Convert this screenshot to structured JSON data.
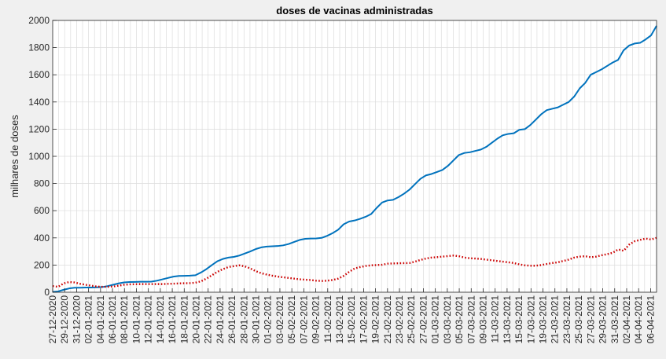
{
  "chart_data": {
    "type": "line",
    "title": "doses de vacinas administradas",
    "xlabel": "",
    "ylabel": "milhares de doses",
    "ylim": [
      0,
      2000
    ],
    "yticks": [
      0,
      200,
      400,
      600,
      800,
      1000,
      1200,
      1400,
      1600,
      1800,
      2000
    ],
    "grid": true,
    "legend": "none",
    "x_start": "2020-12-27",
    "x_end": "2021-04-07",
    "x_tick_labels": [
      "27-12-2020",
      "29-12-2020",
      "31-12-2020",
      "02-01-2021",
      "04-01-2021",
      "06-01-2021",
      "08-01-2021",
      "10-01-2021",
      "12-01-2021",
      "14-01-2021",
      "16-01-2021",
      "18-01-2021",
      "20-01-2021",
      "22-01-2021",
      "24-01-2021",
      "26-01-2021",
      "28-01-2021",
      "30-01-2021",
      "01-02-2021",
      "03-02-2021",
      "05-02-2021",
      "07-02-2021",
      "09-02-2021",
      "11-02-2021",
      "13-02-2021",
      "15-02-2021",
      "17-02-2021",
      "19-02-2021",
      "21-02-2021",
      "23-02-2021",
      "25-02-2021",
      "27-02-2021",
      "01-03-2021",
      "03-03-2021",
      "05-03-2021",
      "07-03-2021",
      "09-03-2021",
      "11-03-2021",
      "13-03-2021",
      "15-03-2021",
      "17-03-2021",
      "19-03-2021",
      "21-03-2021",
      "23-03-2021",
      "25-03-2021",
      "27-03-2021",
      "29-03-2021",
      "31-03-2021",
      "02-04-2021",
      "04-04-2021",
      "06-04-2021"
    ],
    "series": [
      {
        "color": "#0072bd",
        "style": "solid",
        "values": [
          2,
          6,
          18,
          28,
          33,
          33,
          35,
          35,
          36,
          38,
          45,
          55,
          65,
          72,
          75,
          76,
          77,
          77,
          78,
          85,
          95,
          105,
          115,
          120,
          121,
          122,
          125,
          145,
          170,
          200,
          228,
          245,
          255,
          260,
          270,
          285,
          300,
          318,
          330,
          336,
          338,
          340,
          345,
          355,
          370,
          385,
          393,
          395,
          396,
          400,
          415,
          435,
          460,
          500,
          520,
          528,
          540,
          555,
          575,
          620,
          660,
          675,
          680,
          700,
          725,
          755,
          795,
          835,
          860,
          870,
          885,
          900,
          930,
          970,
          1010,
          1025,
          1030,
          1040,
          1050,
          1070,
          1100,
          1130,
          1155,
          1165,
          1170,
          1195,
          1200,
          1230,
          1270,
          1310,
          1340,
          1350,
          1360,
          1380,
          1400,
          1440,
          1500,
          1540,
          1600,
          1620,
          1640,
          1665,
          1690,
          1710,
          1780,
          1815,
          1830,
          1835,
          1860,
          1890,
          1960
        ]
      },
      {
        "color": "#cc0000",
        "style": "dotted",
        "values": [
          45,
          40,
          65,
          75,
          72,
          62,
          55,
          48,
          42,
          40,
          40,
          42,
          48,
          55,
          58,
          59,
          60,
          60,
          60,
          60,
          60,
          62,
          63,
          65,
          66,
          67,
          70,
          80,
          100,
          125,
          150,
          170,
          185,
          192,
          198,
          190,
          175,
          155,
          140,
          130,
          122,
          115,
          110,
          105,
          100,
          95,
          92,
          90,
          85,
          83,
          85,
          90,
          100,
          120,
          150,
          175,
          185,
          193,
          198,
          200,
          202,
          210,
          212,
          213,
          214,
          215,
          225,
          238,
          248,
          255,
          258,
          262,
          266,
          270,
          265,
          255,
          250,
          248,
          245,
          240,
          235,
          230,
          225,
          220,
          215,
          205,
          198,
          195,
          195,
          200,
          208,
          215,
          220,
          230,
          240,
          255,
          262,
          265,
          258,
          262,
          272,
          280,
          290,
          315,
          305,
          350,
          375,
          385,
          395,
          388,
          400
        ]
      }
    ]
  }
}
